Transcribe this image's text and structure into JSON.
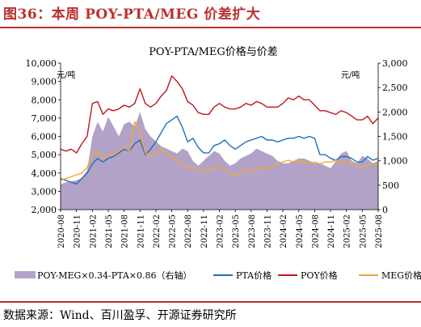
{
  "figure": {
    "title": "图36：本周 POY-PTA/MEG 价差扩大",
    "source": "数据来源：Wind、百川盈孚、开源证券研究所"
  },
  "chart_data": {
    "type": "line",
    "title": "POY-PTA/MEG价格与价差",
    "y_left": {
      "label": "元/吨",
      "lim": [
        2000,
        10000
      ],
      "ticks": [
        "2,000",
        "3,000",
        "4,000",
        "5,000",
        "6,000",
        "7,000",
        "8,000",
        "9,000",
        "10,000"
      ]
    },
    "y_right": {
      "label": "元/吨",
      "lim": [
        0,
        3000
      ],
      "ticks": [
        "0",
        "500",
        "1,000",
        "1,500",
        "2,000",
        "2,500",
        "3,000"
      ]
    },
    "x_ticks": [
      "2020-08",
      "2020-11",
      "2021-02",
      "2021-05",
      "2021-08",
      "2021-11",
      "2022-02",
      "2022-05",
      "2022-08",
      "2022-11",
      "2023-02",
      "2023-05",
      "2023-08",
      "2023-11",
      "2024-02",
      "2024-05",
      "2024-08",
      "2024-11",
      "2025-02",
      "2025-05",
      "2025-08"
    ],
    "x": [
      "2020-08",
      "2020-09",
      "2020-10",
      "2020-11",
      "2020-12",
      "2021-01",
      "2021-02",
      "2021-03",
      "2021-04",
      "2021-05",
      "2021-06",
      "2021-07",
      "2021-08",
      "2021-09",
      "2021-10",
      "2021-11",
      "2021-12",
      "2022-01",
      "2022-02",
      "2022-03",
      "2022-04",
      "2022-05",
      "2022-06",
      "2022-07",
      "2022-08",
      "2022-09",
      "2022-10",
      "2022-11",
      "2022-12",
      "2023-01",
      "2023-02",
      "2023-03",
      "2023-04",
      "2023-05",
      "2023-06",
      "2023-07",
      "2023-08",
      "2023-09",
      "2023-10",
      "2023-11",
      "2023-12",
      "2024-01",
      "2024-02",
      "2024-03",
      "2024-04",
      "2024-05",
      "2024-06",
      "2024-07",
      "2024-08",
      "2024-09",
      "2024-10",
      "2024-11",
      "2024-12",
      "2025-01",
      "2025-02",
      "2025-03",
      "2025-04",
      "2025-05",
      "2025-06",
      "2025-07",
      "2025-08"
    ],
    "legend_position": "bottom",
    "series": [
      {
        "name": "POY-MEG×0.34-PTA×0.86（右轴）",
        "axis": "right",
        "style": "area",
        "color": "#b3a2c7",
        "values": [
          520,
          560,
          580,
          600,
          650,
          800,
          1500,
          1800,
          1600,
          1900,
          1700,
          1500,
          1750,
          1800,
          1700,
          2000,
          1650,
          1500,
          1400,
          1300,
          1250,
          1200,
          1150,
          1250,
          1200,
          1000,
          900,
          1000,
          1100,
          1200,
          1150,
          1000,
          900,
          950,
          1050,
          1100,
          1150,
          1250,
          1200,
          1150,
          1100,
          1000,
          950,
          950,
          1000,
          1050,
          1050,
          1000,
          950,
          950,
          900,
          850,
          1000,
          1150,
          1200,
          1000,
          950,
          1100,
          1050,
          950,
          1000
        ]
      },
      {
        "name": "PTA价格",
        "axis": "left",
        "style": "line",
        "color": "#1f6fba",
        "values": [
          3700,
          3600,
          3500,
          3400,
          3700,
          4000,
          4500,
          4800,
          4600,
          4800,
          4900,
          5100,
          5300,
          5200,
          5600,
          5800,
          5000,
          5300,
          5700,
          6200,
          6700,
          6900,
          7100,
          6500,
          5700,
          5900,
          5400,
          5100,
          5100,
          5500,
          5600,
          5800,
          5500,
          5300,
          5500,
          5700,
          5800,
          5900,
          6000,
          5800,
          5800,
          5700,
          5800,
          5900,
          5900,
          6000,
          5900,
          6000,
          5900,
          5000,
          5000,
          4800,
          4700,
          4900,
          4900,
          4800,
          4600,
          4600,
          4900,
          4700,
          4800
        ]
      },
      {
        "name": "POY价格",
        "axis": "left",
        "style": "line",
        "color": "#c0141e",
        "values": [
          5300,
          5200,
          5300,
          5100,
          5600,
          6000,
          7800,
          7900,
          7200,
          7500,
          7400,
          7500,
          7700,
          7600,
          7800,
          8600,
          7800,
          7600,
          7800,
          8200,
          8500,
          9300,
          9000,
          8600,
          7900,
          7700,
          7300,
          7200,
          7200,
          7600,
          7800,
          7600,
          7500,
          7500,
          7600,
          7800,
          7700,
          7900,
          7800,
          7600,
          7600,
          7600,
          7800,
          8100,
          8000,
          8200,
          8000,
          8000,
          7700,
          7400,
          7400,
          7300,
          7200,
          7400,
          7300,
          7100,
          6900,
          6900,
          7100,
          6700,
          7000
        ]
      },
      {
        "name": "MEG价格",
        "axis": "left",
        "style": "line",
        "color": "#f3a92b",
        "values": [
          3600,
          3700,
          3800,
          3900,
          4000,
          4300,
          5000,
          5200,
          4800,
          5000,
          5000,
          5200,
          5400,
          5200,
          6800,
          6200,
          5100,
          4900,
          5100,
          5300,
          5100,
          4800,
          4700,
          4400,
          4300,
          4300,
          4200,
          4100,
          4100,
          4300,
          4300,
          4200,
          4000,
          3900,
          4000,
          4200,
          4100,
          4200,
          4300,
          4200,
          4400,
          4500,
          4600,
          4700,
          4600,
          4700,
          4600,
          4500,
          4600,
          4500,
          4600,
          4600,
          4700,
          4600,
          4600,
          4500,
          4400,
          4300,
          4400,
          4500,
          4500
        ]
      }
    ]
  }
}
